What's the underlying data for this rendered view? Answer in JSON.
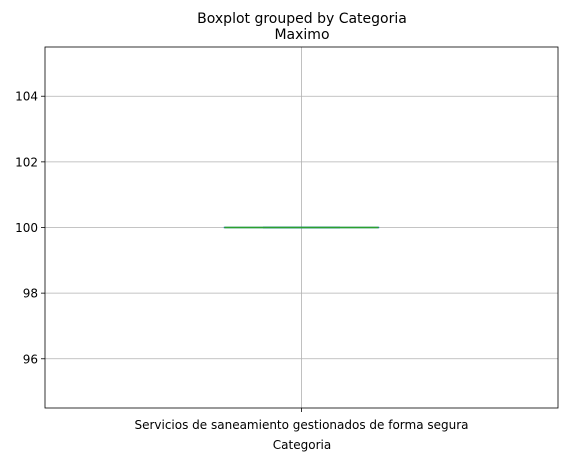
{
  "chart_data": {
    "type": "box",
    "suptitle": "Boxplot grouped by Categoria",
    "title": "Maximo",
    "xlabel": "Categoria",
    "ylabel": "",
    "categories": [
      "Servicios de saneamiento gestionados de forma segura"
    ],
    "boxes": [
      {
        "category": "Servicios de saneamiento gestionados de forma segura",
        "min": 100,
        "q1": 100,
        "median": 100,
        "q3": 100,
        "max": 100
      }
    ],
    "ylim": [
      94.5,
      105.5
    ],
    "yticks": [
      96,
      98,
      100,
      102,
      104
    ],
    "grid": true,
    "colors": {
      "box": "#1f77b4",
      "median": "#2ca02c",
      "grid": "#b0b0b0",
      "axes": "#000000"
    }
  }
}
